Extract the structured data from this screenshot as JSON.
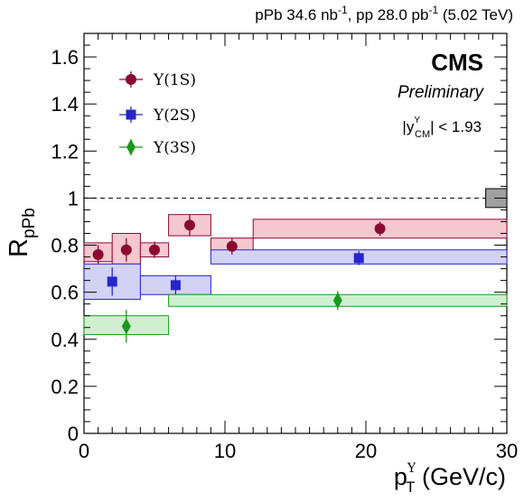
{
  "header": {
    "lumi_prefix": "pPb 34.6 nb",
    "lumi_exp1": "-1",
    "lumi_mid": ", pp 28.0 pb",
    "lumi_exp2": "-1",
    "lumi_suffix": " (5.02 TeV)"
  },
  "labels": {
    "cms": "CMS",
    "preliminary": "Preliminary",
    "rapidity_prefix": "|y",
    "rapidity_sup": "Υ",
    "rapidity_sub": "CM",
    "rapidity_suffix": "| < 1.93"
  },
  "chart_data": {
    "type": "scatter",
    "xlabel_main": "p",
    "xlabel_sub": "T",
    "xlabel_sup": "Υ",
    "xlabel_unit": " (GeV/c)",
    "ylabel_main": "R",
    "ylabel_sub": "pPb",
    "xlim": [
      0,
      30
    ],
    "ylim": [
      0,
      1.7
    ],
    "x_ticks": [
      0,
      10,
      20,
      30
    ],
    "y_ticks": [
      0,
      0.2,
      0.4,
      0.6,
      0.8,
      1,
      1.2,
      1.4,
      1.6
    ],
    "x_tick_labels": [
      "0",
      "10",
      "20",
      "30"
    ],
    "y_tick_labels": [
      "0",
      "0.2",
      "0.4",
      "0.6",
      "0.8",
      "1",
      "1.2",
      "1.4",
      "1.6"
    ],
    "reference_line": 1.0,
    "global_uncertainty": {
      "x": [
        28.5,
        30
      ],
      "y": [
        0.96,
        1.04
      ],
      "color": "#a0a0a0"
    },
    "legend_position": "top-left",
    "series": [
      {
        "name": "Υ(1S)",
        "marker": "circle",
        "color": "#8b0a32",
        "fill": "#f5c7cf",
        "points": [
          {
            "x": 1.0,
            "y": 0.76,
            "err": 0.04,
            "sys": [
              0,
              2
            ],
            "sys_y": [
              0.73,
              0.81
            ]
          },
          {
            "x": 3.0,
            "y": 0.78,
            "err": 0.05,
            "sys": [
              2,
              4
            ],
            "sys_y": [
              0.72,
              0.85
            ]
          },
          {
            "x": 5.0,
            "y": 0.78,
            "err": 0.035,
            "sys": [
              4,
              6
            ],
            "sys_y": [
              0.75,
              0.81
            ]
          },
          {
            "x": 7.5,
            "y": 0.885,
            "err": 0.045,
            "sys": [
              6,
              9
            ],
            "sys_y": [
              0.84,
              0.93
            ]
          },
          {
            "x": 10.5,
            "y": 0.795,
            "err": 0.035,
            "sys": [
              9,
              12
            ],
            "sys_y": [
              0.76,
              0.83
            ]
          },
          {
            "x": 21.0,
            "y": 0.87,
            "err": 0.03,
            "sys": [
              12,
              30
            ],
            "sys_y": [
              0.83,
              0.91
            ]
          }
        ]
      },
      {
        "name": "Υ(2S)",
        "marker": "square",
        "color": "#2626c8",
        "fill": "#d2d2f5",
        "points": [
          {
            "x": 2.0,
            "y": 0.645,
            "err": 0.06,
            "sys": [
              0,
              4
            ],
            "sys_y": [
              0.57,
              0.72
            ]
          },
          {
            "x": 6.5,
            "y": 0.63,
            "err": 0.04,
            "sys": [
              4,
              9
            ],
            "sys_y": [
              0.59,
              0.67
            ]
          },
          {
            "x": 19.5,
            "y": 0.745,
            "err": 0.03,
            "sys": [
              9,
              30
            ],
            "sys_y": [
              0.72,
              0.78
            ]
          }
        ]
      },
      {
        "name": "Υ(3S)",
        "marker": "diamond",
        "color": "#1a9a1a",
        "fill": "#cff0cf",
        "points": [
          {
            "x": 3.0,
            "y": 0.455,
            "err": 0.07,
            "sys": [
              0,
              6
            ],
            "sys_y": [
              0.42,
              0.5
            ]
          },
          {
            "x": 18.0,
            "y": 0.565,
            "err": 0.04,
            "sys": [
              6,
              30
            ],
            "sys_y": [
              0.54,
              0.59
            ]
          }
        ]
      }
    ]
  }
}
